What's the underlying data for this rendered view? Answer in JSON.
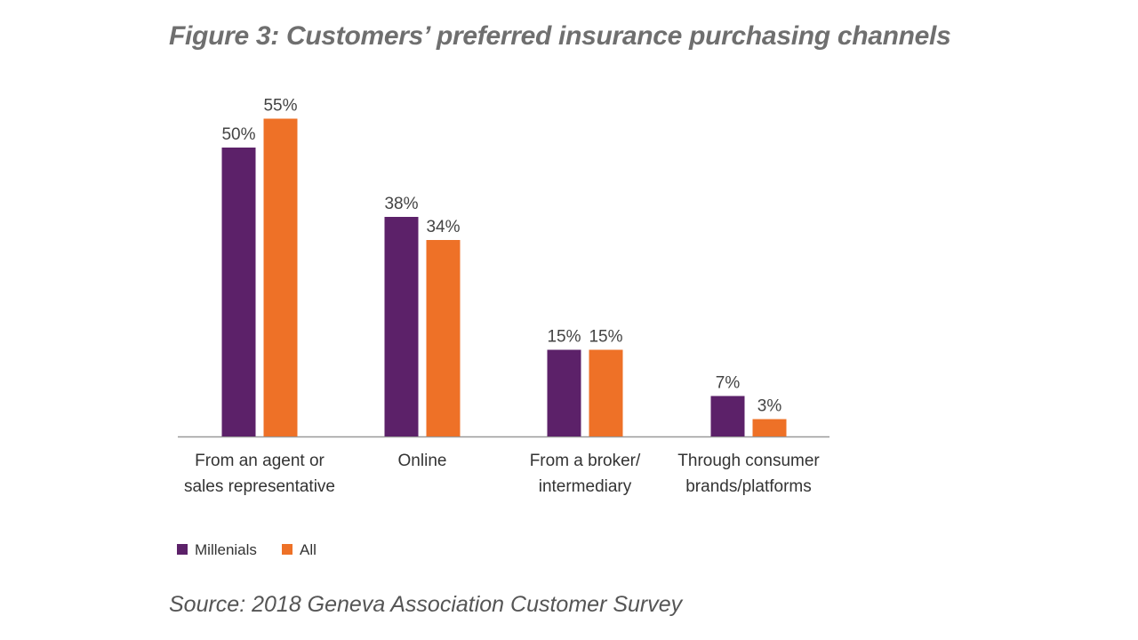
{
  "chart_data": {
    "type": "bar",
    "title": "Figure 3: Customers’ preferred insurance purchasing channels",
    "categories": [
      [
        "From an agent or",
        "sales representative"
      ],
      [
        "Online"
      ],
      [
        "From a broker/",
        "intermediary"
      ],
      [
        "Through consumer",
        "brands/platforms"
      ]
    ],
    "series": [
      {
        "name": "Millenials",
        "color": "#5c2169",
        "values": [
          50,
          38,
          15,
          7
        ],
        "labels": [
          "50%",
          "38%",
          "15%",
          "7%"
        ]
      },
      {
        "name": "All",
        "color": "#ee7127",
        "values": [
          55,
          34,
          15,
          3
        ],
        "labels": [
          "55%",
          "34%",
          "15%",
          "3%"
        ]
      }
    ],
    "ylim": [
      0,
      60
    ],
    "xlabel": "",
    "ylabel": "",
    "grid": false,
    "legend": "bottom-left",
    "source": "Source: 2018 Geneva Association Customer Survey"
  }
}
